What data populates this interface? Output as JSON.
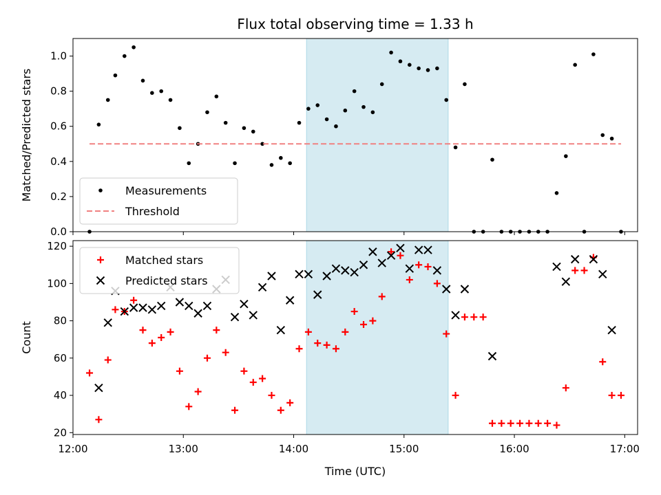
{
  "chart_data": {
    "title": "Flux total observing time = 1.33 h",
    "xlabel": "Time (UTC)",
    "x_range": [
      "12:00",
      "17:07"
    ],
    "x_ticks": [
      "12:00",
      "13:00",
      "14:00",
      "15:00",
      "16:00",
      "17:00"
    ],
    "highlight_band": {
      "start": "14:07",
      "end": "15:24",
      "color": "#add8e6"
    },
    "panels": [
      {
        "type": "scatter",
        "ylabel": "Matched/Predicted stars",
        "ylim": [
          0,
          1.1
        ],
        "yticks": [
          0.0,
          0.2,
          0.4,
          0.6,
          0.8,
          1.0
        ],
        "legend_position": "lower-left",
        "series": [
          {
            "name": "Measurements",
            "marker": "dot",
            "color": "#000000",
            "points": [
              [
                "12:09",
                0.0
              ],
              [
                "12:14",
                0.61
              ],
              [
                "12:19",
                0.75
              ],
              [
                "12:23",
                0.89
              ],
              [
                "12:28",
                1.0
              ],
              [
                "12:33",
                1.05
              ],
              [
                "12:38",
                0.86
              ],
              [
                "12:43",
                0.79
              ],
              [
                "12:48",
                0.8
              ],
              [
                "12:53",
                0.75
              ],
              [
                "12:58",
                0.59
              ],
              [
                "13:03",
                0.39
              ],
              [
                "13:08",
                0.5
              ],
              [
                "13:13",
                0.68
              ],
              [
                "13:18",
                0.77
              ],
              [
                "13:23",
                0.62
              ],
              [
                "13:28",
                0.39
              ],
              [
                "13:33",
                0.59
              ],
              [
                "13:38",
                0.57
              ],
              [
                "13:43",
                0.5
              ],
              [
                "13:48",
                0.38
              ],
              [
                "13:53",
                0.42
              ],
              [
                "13:58",
                0.39
              ],
              [
                "14:03",
                0.62
              ],
              [
                "14:08",
                0.7
              ],
              [
                "14:13",
                0.72
              ],
              [
                "14:18",
                0.64
              ],
              [
                "14:23",
                0.6
              ],
              [
                "14:28",
                0.69
              ],
              [
                "14:33",
                0.8
              ],
              [
                "14:38",
                0.71
              ],
              [
                "14:43",
                0.68
              ],
              [
                "14:48",
                0.84
              ],
              [
                "14:53",
                1.02
              ],
              [
                "14:58",
                0.97
              ],
              [
                "15:03",
                0.95
              ],
              [
                "15:08",
                0.93
              ],
              [
                "15:13",
                0.92
              ],
              [
                "15:18",
                0.93
              ],
              [
                "15:23",
                0.75
              ],
              [
                "15:28",
                0.48
              ],
              [
                "15:33",
                0.84
              ],
              [
                "15:38",
                0.0
              ],
              [
                "15:43",
                0.0
              ],
              [
                "15:48",
                0.41
              ],
              [
                "15:53",
                0.0
              ],
              [
                "15:58",
                0.0
              ],
              [
                "16:03",
                0.0
              ],
              [
                "16:08",
                0.0
              ],
              [
                "16:13",
                0.0
              ],
              [
                "16:18",
                0.0
              ],
              [
                "16:23",
                0.22
              ],
              [
                "16:28",
                0.43
              ],
              [
                "16:33",
                0.95
              ],
              [
                "16:38",
                0.0
              ],
              [
                "16:43",
                1.01
              ],
              [
                "16:48",
                0.55
              ],
              [
                "16:53",
                0.53
              ],
              [
                "16:58",
                0.0
              ]
            ]
          },
          {
            "name": "Threshold",
            "line": "dashed",
            "color": "#f08080",
            "points": [
              [
                "12:09",
                0.5
              ],
              [
                "16:58",
                0.5
              ]
            ]
          }
        ]
      },
      {
        "type": "scatter",
        "ylabel": "Count",
        "ylim": [
          19,
          123
        ],
        "yticks": [
          20,
          40,
          60,
          80,
          100,
          120
        ],
        "legend_position": "upper-left",
        "series": [
          {
            "name": "Matched stars",
            "marker": "plus",
            "color": "#ff0000",
            "points": [
              [
                "12:09",
                52
              ],
              [
                "12:14",
                27
              ],
              [
                "12:19",
                59
              ],
              [
                "12:23",
                86
              ],
              [
                "12:28",
                85
              ],
              [
                "12:33",
                91
              ],
              [
                "12:38",
                75
              ],
              [
                "12:43",
                68
              ],
              [
                "12:48",
                71
              ],
              [
                "12:53",
                74
              ],
              [
                "12:58",
                53
              ],
              [
                "13:03",
                34
              ],
              [
                "13:08",
                42
              ],
              [
                "13:13",
                60
              ],
              [
                "13:18",
                75
              ],
              [
                "13:23",
                63
              ],
              [
                "13:28",
                32
              ],
              [
                "13:33",
                53
              ],
              [
                "13:38",
                47
              ],
              [
                "13:43",
                49
              ],
              [
                "13:48",
                40
              ],
              [
                "13:53",
                32
              ],
              [
                "13:58",
                36
              ],
              [
                "14:03",
                65
              ],
              [
                "14:08",
                74
              ],
              [
                "14:13",
                68
              ],
              [
                "14:18",
                67
              ],
              [
                "14:23",
                65
              ],
              [
                "14:28",
                74
              ],
              [
                "14:33",
                85
              ],
              [
                "14:38",
                78
              ],
              [
                "14:43",
                80
              ],
              [
                "14:48",
                93
              ],
              [
                "14:53",
                117
              ],
              [
                "14:58",
                115
              ],
              [
                "15:03",
                102
              ],
              [
                "15:08",
                110
              ],
              [
                "15:13",
                109
              ],
              [
                "15:18",
                100
              ],
              [
                "15:23",
                73
              ],
              [
                "15:28",
                40
              ],
              [
                "15:33",
                82
              ],
              [
                "15:38",
                82
              ],
              [
                "15:43",
                82
              ],
              [
                "15:48",
                25
              ],
              [
                "15:53",
                25
              ],
              [
                "15:58",
                25
              ],
              [
                "16:03",
                25
              ],
              [
                "16:08",
                25
              ],
              [
                "16:13",
                25
              ],
              [
                "16:18",
                25
              ],
              [
                "16:23",
                24
              ],
              [
                "16:28",
                44
              ],
              [
                "16:33",
                107
              ],
              [
                "16:38",
                107
              ],
              [
                "16:43",
                114
              ],
              [
                "16:48",
                58
              ],
              [
                "16:53",
                40
              ],
              [
                "16:58",
                40
              ]
            ]
          },
          {
            "name": "Predicted stars",
            "marker": "x",
            "color": "#000000",
            "points": [
              [
                "12:14",
                44
              ],
              [
                "12:19",
                79
              ],
              [
                "12:23",
                96
              ],
              [
                "12:28",
                85
              ],
              [
                "12:33",
                87
              ],
              [
                "12:38",
                87
              ],
              [
                "12:43",
                86
              ],
              [
                "12:48",
                88
              ],
              [
                "12:53",
                98
              ],
              [
                "12:58",
                90
              ],
              [
                "13:03",
                88
              ],
              [
                "13:08",
                84
              ],
              [
                "13:13",
                88
              ],
              [
                "13:18",
                97
              ],
              [
                "13:23",
                102
              ],
              [
                "13:28",
                82
              ],
              [
                "13:33",
                89
              ],
              [
                "13:38",
                83
              ],
              [
                "13:43",
                98
              ],
              [
                "13:48",
                104
              ],
              [
                "13:53",
                75
              ],
              [
                "13:58",
                91
              ],
              [
                "14:03",
                105
              ],
              [
                "14:08",
                105
              ],
              [
                "14:13",
                94
              ],
              [
                "14:18",
                104
              ],
              [
                "14:23",
                108
              ],
              [
                "14:28",
                107
              ],
              [
                "14:33",
                106
              ],
              [
                "14:38",
                110
              ],
              [
                "14:43",
                117
              ],
              [
                "14:48",
                111
              ],
              [
                "14:53",
                115
              ],
              [
                "14:58",
                119
              ],
              [
                "15:03",
                108
              ],
              [
                "15:08",
                118
              ],
              [
                "15:13",
                118
              ],
              [
                "15:18",
                107
              ],
              [
                "15:23",
                97
              ],
              [
                "15:28",
                83
              ],
              [
                "15:33",
                97
              ],
              [
                "15:48",
                61
              ],
              [
                "16:23",
                109
              ],
              [
                "16:28",
                101
              ],
              [
                "16:33",
                113
              ],
              [
                "16:43",
                113
              ],
              [
                "16:48",
                105
              ],
              [
                "16:53",
                75
              ]
            ]
          }
        ]
      }
    ]
  }
}
